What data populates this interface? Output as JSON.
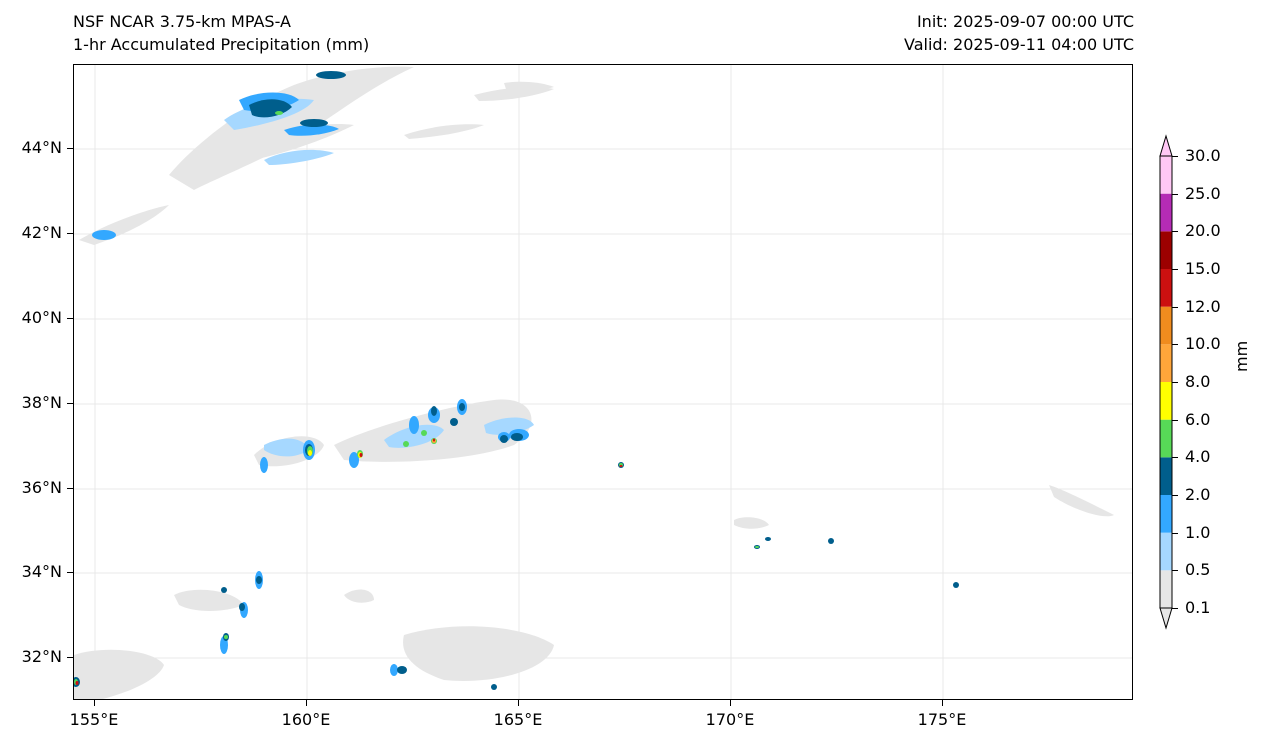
{
  "header": {
    "model_title": "NSF NCAR 3.75-km MPAS-A",
    "field_title": "1-hr Accumulated Precipitation (mm)",
    "init_label": "Init: 2025-09-07 00:00 UTC",
    "valid_label": "Valid: 2025-09-11 04:00 UTC"
  },
  "map": {
    "lon_ticks": [
      "155°E",
      "160°E",
      "165°E",
      "170°E",
      "175°E"
    ],
    "lat_ticks": [
      "44°N",
      "42°N",
      "40°N",
      "38°N",
      "36°N",
      "34°N",
      "32°N"
    ],
    "lon_range": [
      154.6,
      179.7
    ],
    "lat_range": [
      31.0,
      46.0
    ],
    "gridlines": true
  },
  "colorbar": {
    "label": "mm",
    "levels": [
      "0.1",
      "0.5",
      "1.0",
      "2.0",
      "4.0",
      "6.0",
      "8.0",
      "10.0",
      "12.0",
      "15.0",
      "20.0",
      "25.0",
      "30.0"
    ],
    "colors": [
      "#e6e6e6",
      "#a6d8ff",
      "#33a8ff",
      "#005e8c",
      "#57d957",
      "#ffff00",
      "#ffa63a",
      "#f08c1e",
      "#cc1010",
      "#9c0000",
      "#b52bb5",
      "#ffc8f5"
    ],
    "extend": "both"
  }
}
